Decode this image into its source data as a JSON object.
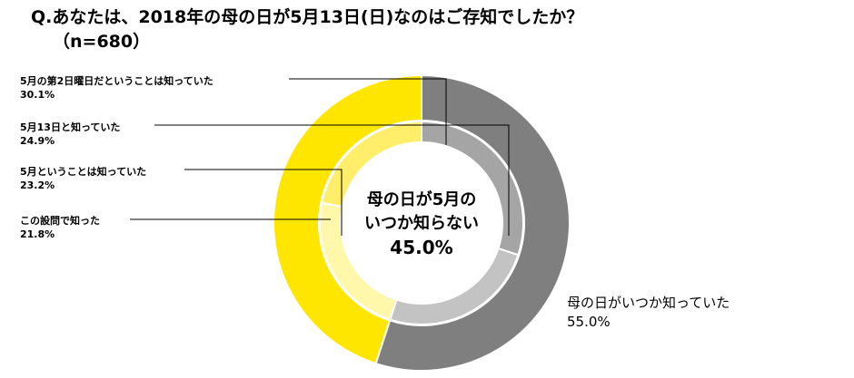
{
  "title": {
    "line1": "Q.あなたは、2018年の母の日が5月13日(日)なのはご存知でしたか？",
    "line2": "（n=680）"
  },
  "colors": {
    "outer_known": "#7f7f7f",
    "outer_unknown": "#ffe600",
    "inner_known": [
      "#a5a5a5",
      "#c3c3c3"
    ],
    "inner_unknown": [
      "#fff7a9",
      "#ffee6a",
      "#fff7a9"
    ],
    "leader": "#000000"
  },
  "chart_data": {
    "type": "pie",
    "title": "Q.あなたは、2018年の母の日が5月13日(日)なのはご存知でしたか？",
    "subtitle": "（n=680）",
    "rings": [
      {
        "name": "outer",
        "slices": [
          {
            "label": "母の日がいつか知っていた",
            "value": 55.0,
            "value_text": "55.0%",
            "color": "#7f7f7f"
          },
          {
            "label": "母の日が5月のいつか知らない",
            "value": 45.0,
            "value_text": "45.0%",
            "color": "#ffe600"
          }
        ]
      },
      {
        "name": "inner",
        "slices": [
          {
            "label": "5月の第2日曜日だということは知っていた",
            "value": 30.1,
            "value_text": "30.1%",
            "color": "#a5a5a5"
          },
          {
            "label": "5月13日と知っていた",
            "value": 24.9,
            "value_text": "24.9%",
            "color": "#c3c3c3"
          },
          {
            "label": "5月ということは知っていた",
            "value": 23.2,
            "value_text": "23.2%",
            "color": "#fff7a9"
          },
          {
            "label": "この設問で知った",
            "value": 21.8,
            "value_text": "21.8%",
            "color": "#ffee6a"
          }
        ]
      }
    ],
    "center_label": {
      "line1": "母の日が5月の",
      "line2": "いつか知らない",
      "value": "45.0%"
    },
    "outer_label": {
      "text": "母の日がいつか知っていた",
      "value": "55.0%"
    }
  }
}
